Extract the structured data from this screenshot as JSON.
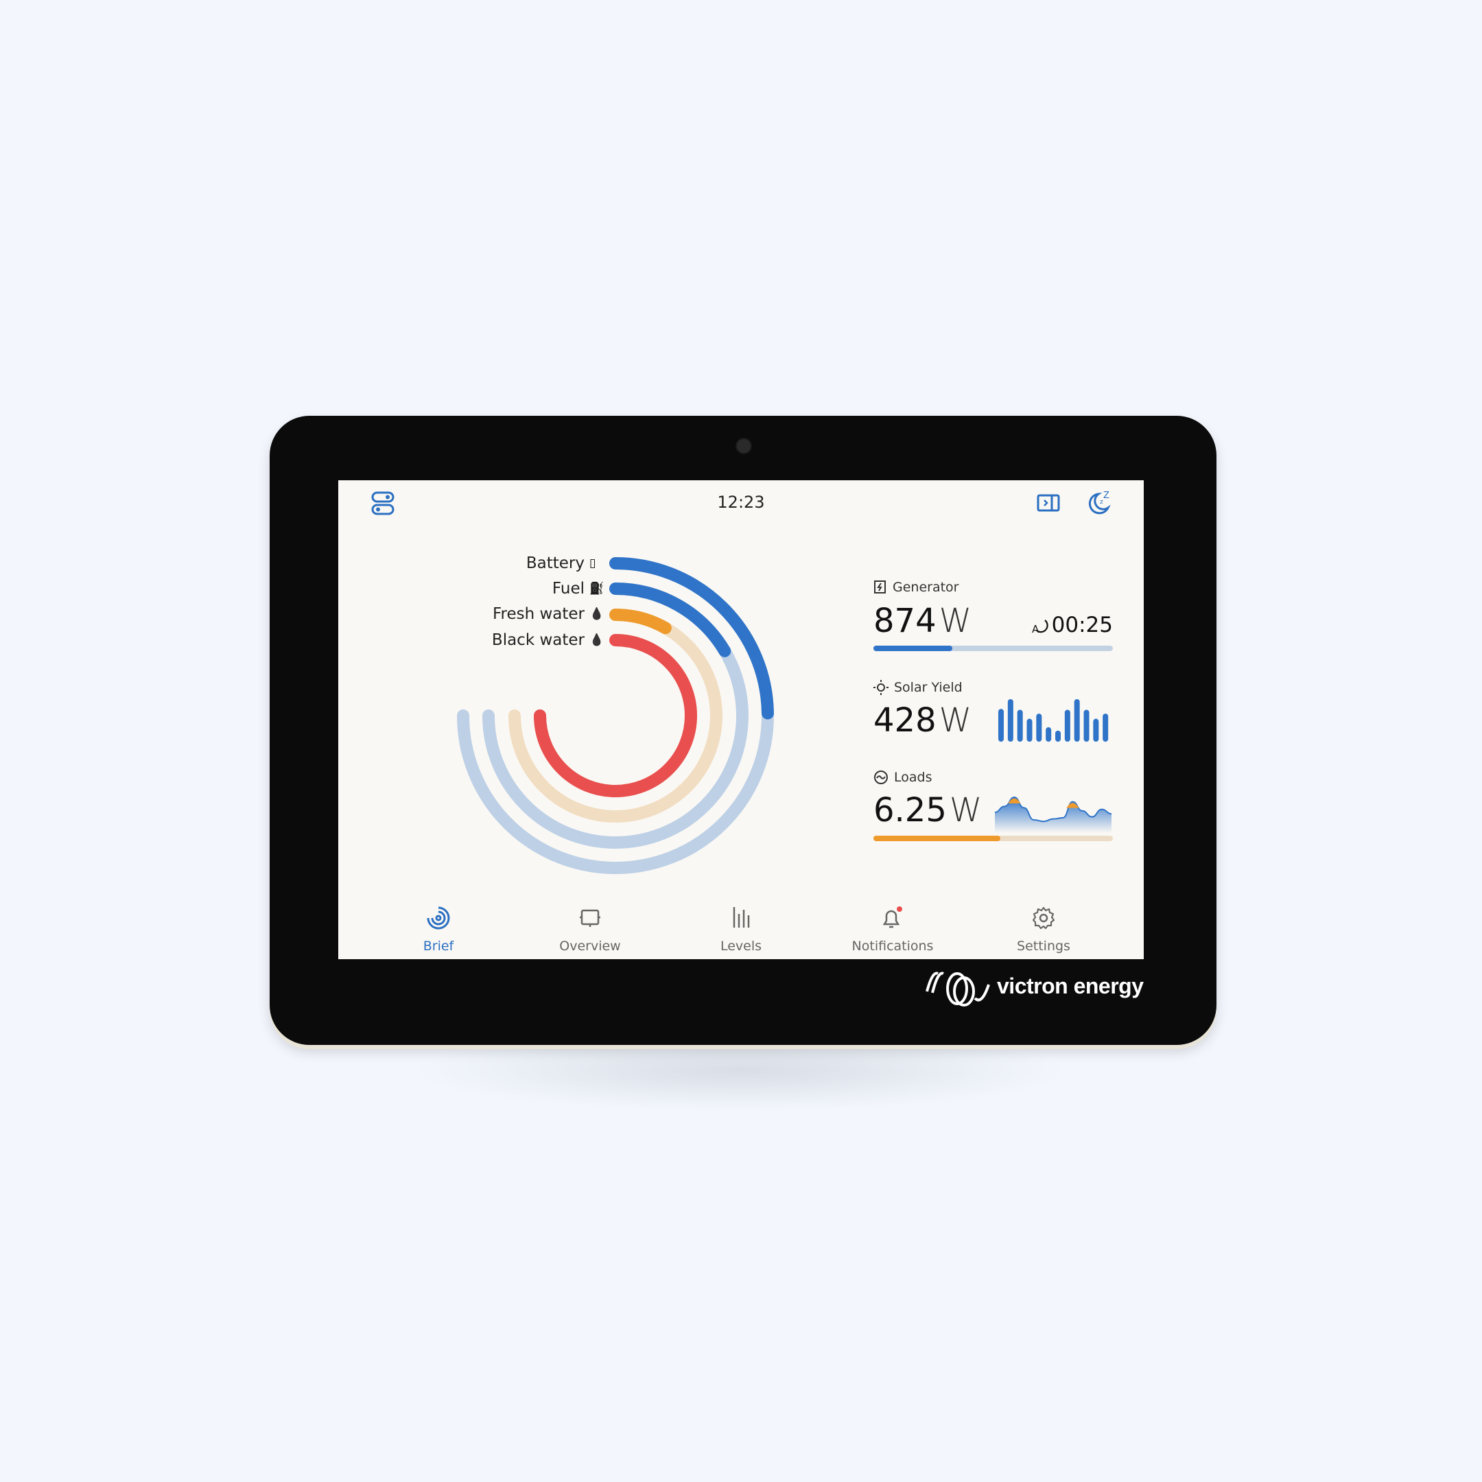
{
  "status_bar": {
    "time": "12:23",
    "left_icon": "toggles-icon",
    "right_icons": [
      "sidepanel-icon",
      "sleep-moon-icon"
    ]
  },
  "levels": [
    {
      "label": "Battery",
      "icon": "battery-icon",
      "glyph": "▯",
      "fraction": 0.33,
      "color": "#2f74c8",
      "track": "#bdd0e6"
    },
    {
      "label": "Fuel",
      "icon": "fuel-icon",
      "glyph": "⛽",
      "fraction": 0.22,
      "color": "#2f74c8",
      "track": "#bdd0e6"
    },
    {
      "label": "Fresh water",
      "icon": "water-drop-icon",
      "glyph": "💧",
      "fraction": 0.11,
      "color": "#ee9a2c",
      "track": "#f1ddc1"
    },
    {
      "label": "Black water",
      "icon": "black-water-drop-icon",
      "glyph": "💧",
      "fraction": 1.0,
      "color": "#e84f4e",
      "track": "#f6d0cf"
    }
  ],
  "generator": {
    "label": "Generator",
    "value": "874",
    "unit": "W",
    "runtime": "00:25",
    "fraction": 0.33,
    "color": "#2f74c8",
    "track": "#c3d2e2"
  },
  "solar": {
    "label": "Solar Yield",
    "value": "428",
    "unit": "W",
    "bars": [
      0.77,
      1.0,
      0.75,
      0.54,
      0.66,
      0.34,
      0.26,
      0.75,
      1.0,
      0.75,
      0.54,
      0.66
    ],
    "color": "#2f74c8"
  },
  "loads": {
    "label": "Loads",
    "value": "6.25",
    "unit": "W",
    "fraction": 0.53,
    "color": "#ee9a2c",
    "track": "#ecdcc6",
    "curve": [
      0.5,
      0.7,
      1.0,
      0.65,
      0.25,
      0.2,
      0.28,
      0.32,
      0.85,
      0.55,
      0.35,
      0.6,
      0.45
    ]
  },
  "nav": [
    {
      "label": "Brief",
      "icon": "brief-icon",
      "active": true
    },
    {
      "label": "Overview",
      "icon": "overview-icon"
    },
    {
      "label": "Levels",
      "icon": "levels-icon"
    },
    {
      "label": "Notifications",
      "icon": "bell-icon",
      "badge": true
    },
    {
      "label": "Settings",
      "icon": "gear-icon"
    }
  ],
  "brand": {
    "logo_text": "victron energy"
  }
}
